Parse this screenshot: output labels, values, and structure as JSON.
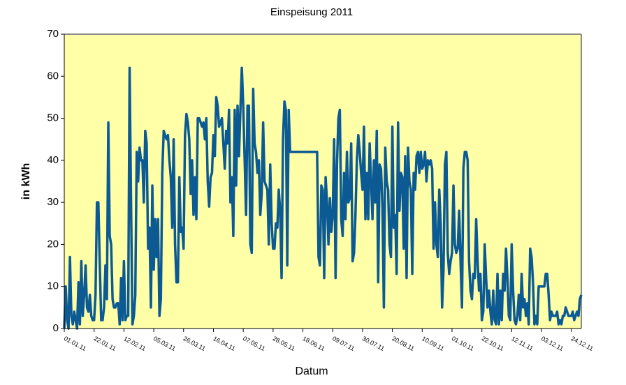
{
  "chart_data": {
    "type": "line",
    "title": "Einspeisung 2011",
    "x_label": "Datum",
    "y_label": "in kWh",
    "categories": [
      "01.01.11",
      null,
      null,
      null,
      null,
      null,
      null,
      null,
      null,
      null,
      null,
      null,
      null,
      null,
      null,
      null,
      null,
      null,
      null,
      null,
      null,
      "22.01.11",
      null,
      null,
      null,
      null,
      null,
      null,
      null,
      null,
      null,
      null,
      null,
      null,
      null,
      null,
      null,
      null,
      null,
      null,
      null,
      null,
      "12.02.11",
      null,
      null,
      null,
      null,
      null,
      null,
      null,
      null,
      null,
      null,
      null,
      null,
      null,
      null,
      null,
      null,
      null,
      null,
      null,
      null,
      "05.03.11",
      null,
      null,
      null,
      null,
      null,
      null,
      null,
      null,
      null,
      null,
      null,
      null,
      null,
      null,
      null,
      null,
      null,
      null,
      null,
      null,
      "26.03.11",
      null,
      null,
      null,
      null,
      null,
      null,
      null,
      null,
      null,
      null,
      null,
      null,
      null,
      null,
      null,
      null,
      null,
      null,
      null,
      null,
      "16.04.11",
      null,
      null,
      null,
      null,
      null,
      null,
      null,
      null,
      null,
      null,
      null,
      null,
      null,
      null,
      null,
      null,
      null,
      null,
      null,
      null,
      "07.05.11",
      null,
      null,
      null,
      null,
      null,
      null,
      null,
      null,
      null,
      null,
      null,
      null,
      null,
      null,
      null,
      null,
      null,
      null,
      null,
      null,
      "28.05.11",
      null,
      null,
      null,
      null,
      null,
      null,
      null,
      null,
      null,
      null,
      null,
      null,
      null,
      null,
      null,
      null,
      null,
      null,
      null,
      null,
      "18.06.11",
      null,
      null,
      null,
      null,
      null,
      null,
      null,
      null,
      null,
      null,
      null,
      null,
      null,
      null,
      null,
      null,
      null,
      null,
      null,
      null,
      "09.07.11",
      null,
      null,
      null,
      null,
      null,
      null,
      null,
      null,
      null,
      null,
      null,
      null,
      null,
      null,
      null,
      null,
      null,
      null,
      null,
      null,
      "30.07.11",
      null,
      null,
      null,
      null,
      null,
      null,
      null,
      null,
      null,
      null,
      null,
      null,
      null,
      null,
      null,
      null,
      null,
      null,
      null,
      null,
      "20.08.11",
      null,
      null,
      null,
      null,
      null,
      null,
      null,
      null,
      null,
      null,
      null,
      null,
      null,
      null,
      null,
      null,
      null,
      null,
      null,
      null,
      "10.09.11",
      null,
      null,
      null,
      null,
      null,
      null,
      null,
      null,
      null,
      null,
      null,
      null,
      null,
      null,
      null,
      null,
      null,
      null,
      null,
      null,
      "01.10.11",
      null,
      null,
      null,
      null,
      null,
      null,
      null,
      null,
      null,
      null,
      null,
      null,
      null,
      null,
      null,
      null,
      null,
      null,
      null,
      null,
      "22.10.11",
      null,
      null,
      null,
      null,
      null,
      null,
      null,
      null,
      null,
      null,
      null,
      null,
      null,
      null,
      null,
      null,
      null,
      null,
      null,
      null,
      "12.11.11",
      null,
      null,
      null,
      null,
      null,
      null,
      null,
      null,
      null,
      null,
      null,
      null,
      null,
      null,
      null,
      null,
      null,
      null,
      null,
      null,
      "03.12.11",
      null,
      null,
      null,
      null,
      null,
      null,
      null,
      null,
      null,
      null,
      null,
      null,
      null,
      null,
      null,
      null,
      null,
      null,
      null,
      null,
      "24.12.11",
      null,
      null,
      null,
      null,
      null,
      null,
      null
    ],
    "values": [
      0,
      10,
      2,
      0,
      17,
      3,
      1,
      4,
      2,
      0,
      11,
      1,
      16,
      3,
      8,
      15,
      5,
      4,
      8,
      3,
      2,
      2,
      8,
      30,
      30,
      15,
      2,
      2,
      5,
      15,
      7,
      49,
      22,
      20,
      7,
      5,
      5,
      6,
      6,
      1,
      12,
      2,
      16,
      2,
      3,
      3,
      62,
      30,
      1,
      3,
      8,
      42,
      35,
      43,
      40,
      40,
      30,
      47,
      44,
      19,
      24,
      5,
      34,
      14,
      26,
      17,
      26,
      3,
      7,
      37,
      47,
      46,
      45,
      46,
      40,
      36,
      24,
      45,
      20,
      11,
      11,
      36,
      23,
      24,
      19,
      46,
      51,
      49,
      45,
      32,
      40,
      27,
      36,
      26,
      50,
      50,
      49,
      48,
      49,
      45,
      50,
      35,
      29,
      36,
      37,
      46,
      41,
      55,
      53,
      48,
      49,
      50,
      44,
      38,
      47,
      44,
      52,
      30,
      36,
      22,
      52,
      34,
      53,
      41,
      52,
      62,
      53,
      40,
      27,
      53,
      53,
      20,
      18,
      57,
      44,
      42,
      37,
      40,
      27,
      32,
      49,
      35,
      34,
      33,
      20,
      39,
      25,
      19,
      19,
      25,
      24,
      33,
      28,
      12,
      45,
      54,
      52,
      15,
      52,
      42,
      42,
      42,
      42,
      42,
      42,
      42,
      42,
      42,
      42,
      42,
      42,
      42,
      42,
      42,
      42,
      42,
      42,
      42,
      42,
      17,
      15,
      34,
      33,
      12,
      36,
      30,
      20,
      31,
      23,
      27,
      45,
      12,
      39,
      50,
      52,
      26,
      22,
      37,
      26,
      42,
      30,
      31,
      44,
      16,
      18,
      27,
      40,
      46,
      42,
      37,
      33,
      48,
      26,
      37,
      26,
      44,
      35,
      26,
      40,
      30,
      47,
      11,
      39,
      38,
      29,
      5,
      43,
      35,
      33,
      20,
      17,
      48,
      24,
      27,
      13,
      49,
      28,
      37,
      36,
      19,
      41,
      12,
      43,
      35,
      33,
      13,
      37,
      33,
      41,
      42,
      37,
      42,
      38,
      39,
      42,
      35,
      40,
      39,
      40,
      38,
      19,
      30,
      20,
      17,
      33,
      25,
      5,
      14,
      39,
      42,
      18,
      13,
      16,
      18,
      34,
      20,
      18,
      19,
      28,
      16,
      5,
      38,
      42,
      42,
      40,
      16,
      9,
      7,
      13,
      12,
      26,
      16,
      9,
      13,
      2,
      4,
      20,
      12,
      5,
      9,
      4,
      1,
      9,
      2,
      1,
      13,
      1,
      9,
      2,
      13,
      9,
      19,
      12,
      3,
      2,
      20,
      9,
      2,
      1,
      3,
      8,
      2,
      13,
      5,
      7,
      3,
      6,
      1,
      19,
      17,
      11,
      1,
      3,
      1,
      10,
      10,
      10,
      10,
      10,
      13,
      13,
      8,
      2,
      4,
      3,
      3,
      3,
      4,
      1,
      2,
      1,
      3,
      3,
      5,
      4,
      3,
      3,
      3,
      4,
      2,
      3,
      4,
      3,
      7,
      8
    ],
    "color": "#0b5a94",
    "background": "#ffffa8",
    "ylim": [
      0,
      70
    ],
    "yticks": [
      0,
      10,
      20,
      30,
      40,
      50,
      60,
      70
    ]
  }
}
